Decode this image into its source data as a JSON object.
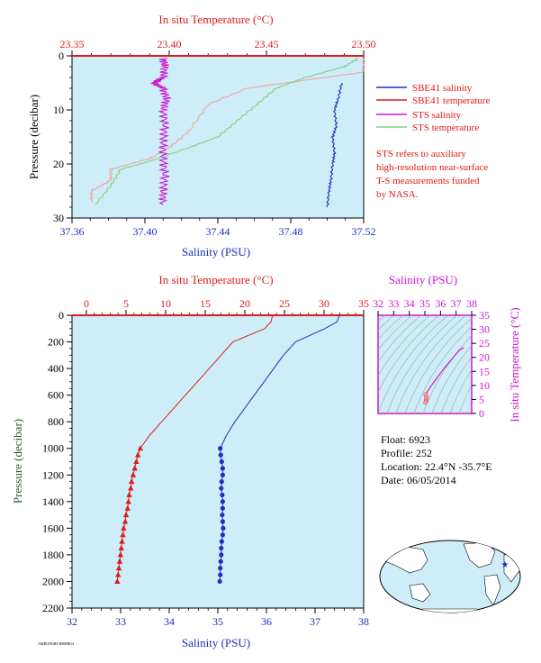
{
  "colors": {
    "plot_bg": "#cdeef8",
    "red": "#e01a1a",
    "blue": "#1c2fc0",
    "magenta": "#d015d0",
    "green": "#7ed37e",
    "salmon": "#f4a0a0",
    "axis_dark": "#000000"
  },
  "top": {
    "top_axis_title": "In situ Temperature (°C)",
    "bottom_axis_title": "Salinity (PSU)",
    "y_title": "Pressure (decibar)",
    "temp_ticks": [
      "23.35",
      "23.40",
      "23.45",
      "23.50"
    ],
    "sal_ticks": [
      "37.36",
      "37.40",
      "37.44",
      "37.48",
      "37.52"
    ],
    "pres_ticks": [
      "0",
      "10",
      "20",
      "30"
    ],
    "legend": [
      {
        "label": "SBE41 salinity",
        "color": "#1c2fc0"
      },
      {
        "label": "SBE41 temperature",
        "color": "#e01a1a"
      },
      {
        "label": "STS salinity",
        "color": "#d015d0"
      },
      {
        "label": "STS temperature",
        "color": "#7ed37e"
      }
    ],
    "note": [
      "STS refers to auxiliary",
      "high-resolution near-surface",
      "T-S measurements funded",
      "by NASA."
    ]
  },
  "bottom": {
    "top_axis_title": "In situ Temperature (°C)",
    "bottom_axis_title": "Salinity (PSU)",
    "y_title": "Pressure (decibar)",
    "temp_ticks": [
      "0",
      "5",
      "10",
      "15",
      "20",
      "25",
      "30",
      "35"
    ],
    "sal_ticks": [
      "32",
      "33",
      "34",
      "35",
      "36",
      "37",
      "38"
    ],
    "pres_ticks": [
      "0",
      "200",
      "400",
      "600",
      "800",
      "1000",
      "1200",
      "1400",
      "1600",
      "1800",
      "2000",
      "2200"
    ]
  },
  "ts_inset": {
    "top_title": "Salinity (PSU)",
    "right_title": "In situ Temperature (°C)",
    "sal_ticks": [
      "32",
      "33",
      "34",
      "35",
      "36",
      "37",
      "38"
    ],
    "temp_ticks": [
      "0",
      "5",
      "10",
      "15",
      "20",
      "25",
      "30",
      "35"
    ]
  },
  "float_info": {
    "float": "Float:  6923",
    "profile": "Profile:  252",
    "location": "Location:  22.4°N  -35.7°E",
    "date": "Date:  06/05/2014"
  },
  "footer_text": "AMBUHGBS BBMBU4",
  "chart_data": [
    {
      "type": "line",
      "name": "near-surface profile",
      "x_top": {
        "label": "In situ Temperature (°C)",
        "lim": [
          23.35,
          23.5
        ]
      },
      "x_bottom": {
        "label": "Salinity (PSU)",
        "lim": [
          37.36,
          37.52
        ]
      },
      "y": {
        "label": "Pressure (decibar)",
        "lim": [
          30,
          0
        ]
      },
      "series": [
        {
          "name": "SBE41 salinity",
          "axis": "salinity",
          "color": "#1c2fc0",
          "points": [
            [
              37.508,
              5
            ],
            [
              37.506,
              8
            ],
            [
              37.504,
              10
            ],
            [
              37.505,
              13
            ],
            [
              37.503,
              15
            ],
            [
              37.504,
              18
            ],
            [
              37.503,
              20
            ],
            [
              37.502,
              23
            ],
            [
              37.501,
              25
            ],
            [
              37.5,
              28
            ]
          ]
        },
        {
          "name": "SBE41 temperature",
          "axis": "temperature",
          "color": "#e01a1a",
          "points": [
            [
              23.5,
              0.3
            ],
            [
              23.5,
              3
            ],
            [
              23.44,
              6
            ],
            [
              23.42,
              9
            ],
            [
              23.41,
              14
            ],
            [
              23.4,
              17
            ],
            [
              23.39,
              19
            ],
            [
              23.37,
              21
            ],
            [
              23.37,
              23
            ],
            [
              23.36,
              25
            ],
            [
              23.36,
              27
            ]
          ]
        },
        {
          "name": "STS salinity",
          "axis": "salinity",
          "color": "#d015d0",
          "points": [
            [
              37.41,
              0.5
            ],
            [
              37.411,
              2
            ],
            [
              37.41,
              4
            ],
            [
              37.405,
              5
            ],
            [
              37.41,
              6
            ],
            [
              37.412,
              8
            ],
            [
              37.41,
              10
            ],
            [
              37.411,
              13
            ],
            [
              37.41,
              16
            ],
            [
              37.41,
              19
            ],
            [
              37.411,
              22
            ],
            [
              37.41,
              25
            ],
            [
              37.41,
              27.5
            ]
          ]
        },
        {
          "name": "STS temperature",
          "axis": "temperature",
          "color": "#7ed37e",
          "points": [
            [
              23.497,
              0.5
            ],
            [
              23.49,
              2
            ],
            [
              23.47,
              4
            ],
            [
              23.455,
              6
            ],
            [
              23.445,
              9
            ],
            [
              23.435,
              12
            ],
            [
              23.425,
              15
            ],
            [
              23.41,
              17
            ],
            [
              23.39,
              19.5
            ],
            [
              23.375,
              21
            ],
            [
              23.37,
              24
            ],
            [
              23.362,
              27.5
            ]
          ]
        }
      ]
    },
    {
      "type": "scatter",
      "name": "full profile",
      "x_top": {
        "label": "In situ Temperature (°C)",
        "lim": [
          0,
          35
        ]
      },
      "x_bottom": {
        "label": "Salinity (PSU)",
        "lim": [
          32,
          38
        ]
      },
      "y": {
        "label": "Pressure (decibar)",
        "lim": [
          2200,
          0
        ]
      },
      "series": [
        {
          "name": "temperature",
          "axis": "temperature",
          "color": "#e01a1a",
          "marker": "triangle",
          "points": [
            [
              23.5,
              0
            ],
            [
              23.3,
              50
            ],
            [
              22.5,
              100
            ],
            [
              20.5,
              150
            ],
            [
              18.5,
              200
            ],
            [
              17,
              300
            ],
            [
              15.5,
              400
            ],
            [
              14,
              500
            ],
            [
              12.5,
              600
            ],
            [
              11,
              700
            ],
            [
              9.5,
              800
            ],
            [
              8,
              900
            ],
            [
              6.8,
              1000
            ],
            [
              6.5,
              1050
            ],
            [
              6.3,
              1100
            ],
            [
              6.1,
              1150
            ],
            [
              5.9,
              1200
            ],
            [
              5.7,
              1250
            ],
            [
              5.6,
              1300
            ],
            [
              5.4,
              1350
            ],
            [
              5.3,
              1400
            ],
            [
              5.2,
              1450
            ],
            [
              5.0,
              1500
            ],
            [
              4.9,
              1550
            ],
            [
              4.7,
              1600
            ],
            [
              4.6,
              1650
            ],
            [
              4.5,
              1700
            ],
            [
              4.4,
              1750
            ],
            [
              4.3,
              1800
            ],
            [
              4.2,
              1850
            ],
            [
              4.1,
              1900
            ],
            [
              4.0,
              1950
            ],
            [
              3.9,
              2000
            ]
          ]
        },
        {
          "name": "salinity",
          "axis": "salinity",
          "color": "#1c2fc0",
          "marker": "circle",
          "points": [
            [
              37.5,
              0
            ],
            [
              37.45,
              50
            ],
            [
              37.2,
              100
            ],
            [
              36.9,
              150
            ],
            [
              36.6,
              200
            ],
            [
              36.35,
              300
            ],
            [
              36.15,
              400
            ],
            [
              35.95,
              500
            ],
            [
              35.75,
              600
            ],
            [
              35.55,
              700
            ],
            [
              35.35,
              800
            ],
            [
              35.18,
              900
            ],
            [
              35.05,
              1000
            ],
            [
              35.06,
              1050
            ],
            [
              35.08,
              1100
            ],
            [
              35.1,
              1150
            ],
            [
              35.1,
              1200
            ],
            [
              35.08,
              1250
            ],
            [
              35.07,
              1300
            ],
            [
              35.09,
              1350
            ],
            [
              35.1,
              1400
            ],
            [
              35.1,
              1450
            ],
            [
              35.09,
              1500
            ],
            [
              35.1,
              1550
            ],
            [
              35.11,
              1600
            ],
            [
              35.1,
              1650
            ],
            [
              35.08,
              1700
            ],
            [
              35.07,
              1750
            ],
            [
              35.07,
              1800
            ],
            [
              35.06,
              1850
            ],
            [
              35.05,
              1900
            ],
            [
              35.05,
              1950
            ],
            [
              35.04,
              2000
            ]
          ]
        }
      ]
    },
    {
      "type": "line",
      "name": "T-S diagram",
      "x": {
        "label": "Salinity (PSU)",
        "lim": [
          32,
          38
        ]
      },
      "y": {
        "label": "In situ Temperature (°C)",
        "lim": [
          0,
          35
        ]
      },
      "series": [
        {
          "name": "T-S",
          "color": "#d015d0",
          "points": [
            [
              37.5,
              23.5
            ],
            [
              37.2,
              22.5
            ],
            [
              36.6,
              18.5
            ],
            [
              36.15,
              15.5
            ],
            [
              35.75,
              12.5
            ],
            [
              35.35,
              9.5
            ],
            [
              35.05,
              6.8
            ],
            [
              35.1,
              5.9
            ],
            [
              35.1,
              5.0
            ],
            [
              35.07,
              4.3
            ],
            [
              35.04,
              3.9
            ]
          ]
        }
      ]
    }
  ]
}
